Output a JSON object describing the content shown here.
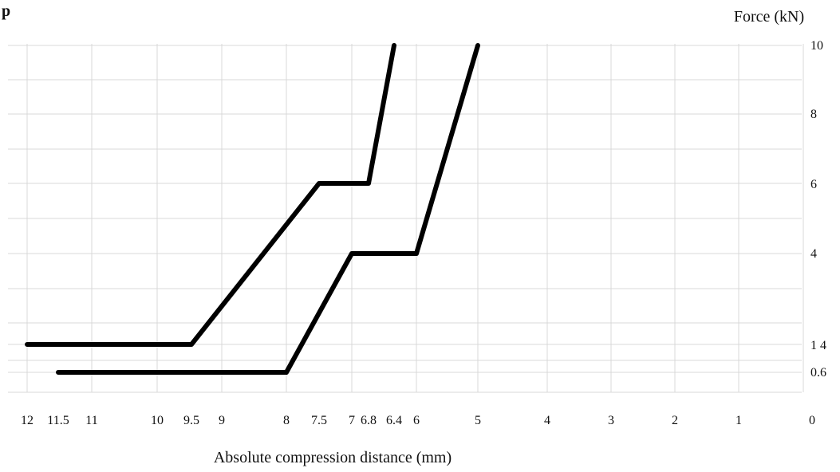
{
  "corner_mark": "p",
  "chart_data": {
    "type": "line",
    "title": "",
    "xlabel": "Absolute compression distance (mm)",
    "ylabel": "Force (kN)",
    "x_reversed": true,
    "xlim": [
      12,
      0
    ],
    "ylim": [
      0,
      10
    ],
    "x_tick_labels": [
      "12",
      "11.5",
      "11",
      "10",
      "9.5",
      "9",
      "8",
      "7.5",
      "7",
      "6.8",
      "6.4",
      "6",
      "5",
      "4",
      "3",
      "2",
      "1",
      "0"
    ],
    "y_tick_labels": [
      "10",
      "8",
      "6",
      "4",
      "1 4",
      "0.6"
    ],
    "grid": true,
    "legend": "none",
    "series": [
      {
        "color": "#000000",
        "x": [
          12,
          9.5,
          7.5,
          6.8,
          6.4
        ],
        "y": [
          1.4,
          1.4,
          6,
          6,
          10
        ]
      },
      {
        "color": "#000000",
        "x": [
          11.5,
          8,
          7,
          6,
          5
        ],
        "y": [
          0.6,
          0.6,
          4,
          4,
          10
        ]
      }
    ]
  }
}
